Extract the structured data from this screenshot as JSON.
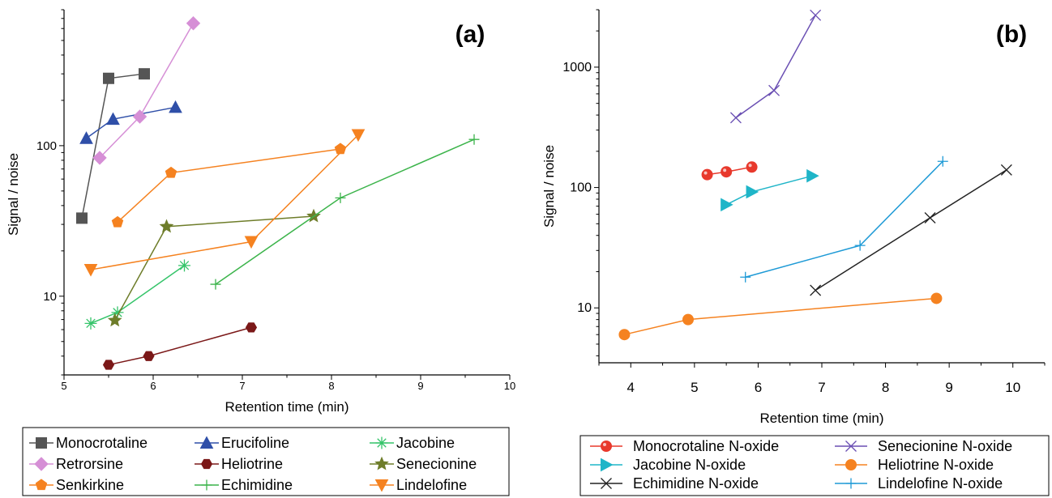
{
  "chart_data": [
    {
      "type": "line",
      "panel_label": "(a)",
      "xlabel": "Retention time (min)",
      "ylabel": "Signal / noise",
      "xscale": "linear",
      "yscale": "log",
      "xlim": [
        5,
        10
      ],
      "ylim": [
        3,
        800
      ],
      "xticks": [
        5,
        6,
        7,
        8,
        9,
        10
      ],
      "yticks": [
        10,
        100
      ],
      "grid": false,
      "legend_position": "below",
      "series": [
        {
          "name": "Monocrotaline",
          "color": "#555555",
          "marker": "square",
          "points": [
            [
              5.2,
              33
            ],
            [
              5.5,
              280
            ],
            [
              5.9,
              300
            ]
          ]
        },
        {
          "name": "Erucifoline",
          "color": "#2f4fa8",
          "marker": "triangle-up",
          "points": [
            [
              5.25,
              112
            ],
            [
              5.55,
              150
            ],
            [
              6.25,
              180
            ]
          ]
        },
        {
          "name": "Jacobine",
          "color": "#35c46a",
          "marker": "asterisk",
          "points": [
            [
              5.3,
              6.6
            ],
            [
              5.6,
              7.8
            ],
            [
              6.35,
              16
            ]
          ]
        },
        {
          "name": "Retrorsine",
          "color": "#d68fd6",
          "marker": "diamond",
          "points": [
            [
              5.4,
              83
            ],
            [
              5.85,
              156
            ],
            [
              6.45,
              650
            ]
          ]
        },
        {
          "name": "Heliotrine",
          "color": "#7b1818",
          "marker": "hexagon",
          "points": [
            [
              5.5,
              3.5
            ],
            [
              5.95,
              4.0
            ],
            [
              7.1,
              6.2
            ]
          ]
        },
        {
          "name": "Senecionine",
          "color": "#6e7d2a",
          "marker": "star",
          "points": [
            [
              5.57,
              6.9
            ],
            [
              6.15,
              29
            ],
            [
              7.8,
              34
            ]
          ]
        },
        {
          "name": "Senkirkine",
          "color": "#f58220",
          "marker": "pentagon",
          "points": [
            [
              5.6,
              31
            ],
            [
              6.2,
              66
            ],
            [
              8.1,
              95
            ]
          ]
        },
        {
          "name": "Echimidine",
          "color": "#3cb44b",
          "marker": "plus",
          "points": [
            [
              6.7,
              12
            ],
            [
              8.1,
              45
            ],
            [
              9.6,
              110
            ]
          ]
        },
        {
          "name": "Lindelofine",
          "color": "#f58220",
          "marker": "triangle-down",
          "points": [
            [
              5.3,
              15
            ],
            [
              7.1,
              23
            ],
            [
              8.3,
              118
            ]
          ]
        }
      ]
    },
    {
      "type": "line",
      "panel_label": "(b)",
      "xlabel": "Retention time (min)",
      "ylabel": "Signal / noise",
      "xscale": "linear",
      "yscale": "log",
      "xlim": [
        3.5,
        10.5
      ],
      "ylim": [
        3.5,
        3000
      ],
      "xticks": [
        4,
        5,
        6,
        7,
        8,
        9,
        10
      ],
      "yticks": [
        10,
        100,
        1000
      ],
      "grid": false,
      "legend_position": "below",
      "series": [
        {
          "name": "Monocrotaline N-oxide",
          "color": "#e8392c",
          "marker": "sphere",
          "points": [
            [
              5.2,
              128
            ],
            [
              5.5,
              135
            ],
            [
              5.9,
              148
            ]
          ]
        },
        {
          "name": "Senecionine N-oxide",
          "color": "#6a4fb3",
          "marker": "x",
          "points": [
            [
              5.65,
              380
            ],
            [
              6.25,
              640
            ],
            [
              6.9,
              2700
            ]
          ]
        },
        {
          "name": "Jacobine N-oxide",
          "color": "#1fb5c8",
          "marker": "triangle-right",
          "points": [
            [
              5.5,
              72
            ],
            [
              5.9,
              92
            ],
            [
              6.85,
              125
            ]
          ]
        },
        {
          "name": "Heliotrine N-oxide",
          "color": "#f58220",
          "marker": "circle",
          "points": [
            [
              3.9,
              6
            ],
            [
              4.9,
              8
            ],
            [
              8.8,
              12
            ]
          ]
        },
        {
          "name": "Echimidine N-oxide",
          "color": "#222222",
          "marker": "x",
          "points": [
            [
              6.9,
              14
            ],
            [
              8.7,
              56
            ],
            [
              9.9,
              140
            ]
          ]
        },
        {
          "name": "Lindelofine N-oxide",
          "color": "#1e9ad6",
          "marker": "plus",
          "points": [
            [
              5.8,
              18
            ],
            [
              7.6,
              33
            ],
            [
              8.9,
              165
            ]
          ]
        }
      ]
    }
  ]
}
